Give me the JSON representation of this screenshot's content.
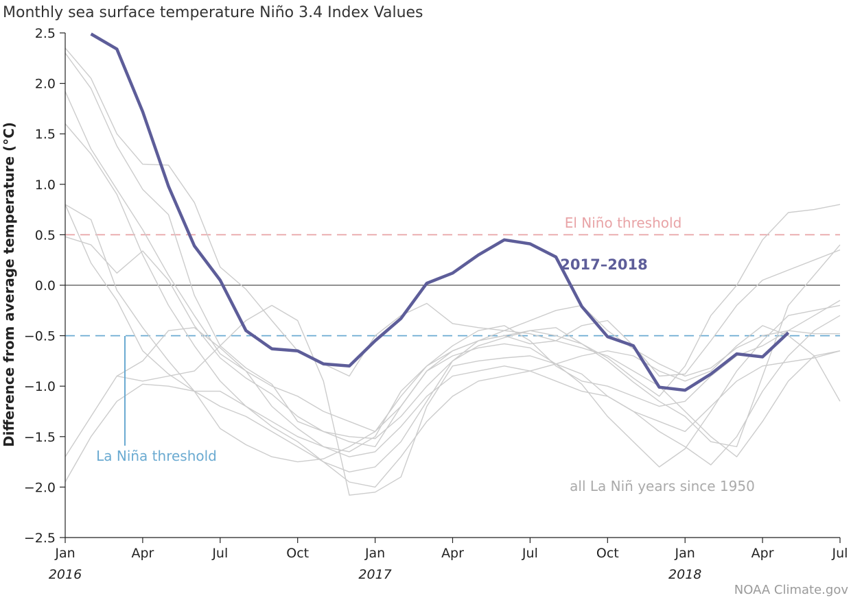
{
  "title": "Monthly sea surface temperature Niño 3.4 Index Values",
  "credit": "NOAA Climate.gov",
  "colors": {
    "highlight": "#5d5d99",
    "background_series": "#cccccc",
    "el_nino": "#e8a3a6",
    "la_nina": "#6aaad1",
    "zero_line": "#222222",
    "gray_text": "#aaaaaa"
  },
  "chart_data": {
    "type": "line",
    "title": "Monthly sea surface temperature Niño 3.4 Index Values",
    "xlabel": "",
    "ylabel": "Difference from average temperature (°C)",
    "ylim": [
      -2.5,
      2.5
    ],
    "yticks": [
      2.5,
      2.0,
      1.5,
      1.0,
      0.5,
      0.0,
      -0.5,
      -1.0,
      -1.5,
      -2.0,
      -2.5
    ],
    "ytick_labels": [
      "2.5",
      "2.0",
      "1.5",
      "1.0",
      "0.5",
      "0.0",
      "−0.5",
      "−1.0",
      "−1.5",
      "−2.0",
      "−2.5"
    ],
    "x_domain": [
      "2016-01",
      "2018-07"
    ],
    "xticks": [
      {
        "x": "2016-01",
        "label": "Jan",
        "year": "2016"
      },
      {
        "x": "2016-04",
        "label": "Apr"
      },
      {
        "x": "2016-07",
        "label": "Jul"
      },
      {
        "x": "2016-10",
        "label": "Oct"
      },
      {
        "x": "2017-01",
        "label": "Jan",
        "year": "2017"
      },
      {
        "x": "2017-04",
        "label": "Apr"
      },
      {
        "x": "2017-07",
        "label": "Jul"
      },
      {
        "x": "2017-10",
        "label": "Oct"
      },
      {
        "x": "2018-01",
        "label": "Jan",
        "year": "2018"
      },
      {
        "x": "2018-04",
        "label": "Apr"
      },
      {
        "x": "2018-07",
        "label": "Jul"
      }
    ],
    "thresholds": [
      {
        "label": "El Niño threshold",
        "y": 0.5,
        "color": "#e8a3a6"
      },
      {
        "label": "La Niña threshold",
        "y": -0.5,
        "color": "#6aaad1"
      }
    ],
    "highlight_series": {
      "name": "2017–2018",
      "x": [
        "2016-02",
        "2016-03",
        "2016-04",
        "2016-05",
        "2016-06",
        "2016-07",
        "2016-08",
        "2016-09",
        "2016-10",
        "2016-11",
        "2016-12",
        "2017-01",
        "2017-02",
        "2017-03",
        "2017-04",
        "2017-05",
        "2017-06",
        "2017-07",
        "2017-08",
        "2017-09",
        "2017-10",
        "2017-11",
        "2017-12",
        "2018-01",
        "2018-02",
        "2018-03",
        "2018-04",
        "2018-05",
        "2018-06"
      ],
      "values": [
        2.49,
        2.34,
        1.72,
        0.98,
        0.39,
        0.05,
        -0.45,
        -0.63,
        -0.65,
        -0.78,
        -0.8,
        -0.55,
        -0.33,
        0.02,
        0.12,
        0.3,
        0.45,
        0.41,
        0.28,
        -0.21,
        -0.51,
        -0.6,
        -1.01,
        -1.04,
        -0.88,
        -0.68,
        -0.71,
        -0.47,
        null
      ]
    },
    "background_series_label": "all La Niñ years since 1950",
    "background_series": [
      {
        "x": [
          "2016-01",
          "2016-02",
          "2016-03",
          "2016-04",
          "2016-05",
          "2016-06",
          "2016-07",
          "2016-08",
          "2016-09",
          "2016-10",
          "2016-11",
          "2016-12",
          "2017-01",
          "2017-02",
          "2017-03",
          "2017-04",
          "2017-05",
          "2017-06",
          "2017-07",
          "2017-08",
          "2017-09",
          "2017-10",
          "2017-11",
          "2017-12",
          "2018-01",
          "2018-02",
          "2018-03",
          "2018-04",
          "2018-05",
          "2018-06",
          "2018-07"
        ],
        "values": [
          2.35,
          2.05,
          1.5,
          1.2,
          1.19,
          0.82,
          0.18,
          -0.04,
          -0.35,
          -0.65,
          -0.78,
          -0.9,
          -0.5,
          -0.3,
          -0.18,
          -0.38,
          -0.42,
          -0.45,
          -0.35,
          -0.25,
          -0.2,
          -0.45,
          -0.63,
          -0.78,
          -0.9,
          -0.82,
          -0.62,
          -0.5,
          -0.45,
          -0.48,
          -0.48
        ]
      },
      {
        "x": [
          "2016-01",
          "2016-02",
          "2016-03",
          "2016-04",
          "2016-05",
          "2016-06",
          "2016-07",
          "2016-08",
          "2016-09",
          "2016-10",
          "2016-11",
          "2016-12",
          "2017-01",
          "2017-02",
          "2017-03",
          "2017-04",
          "2017-05",
          "2017-06",
          "2017-07",
          "2017-08",
          "2017-09",
          "2017-10",
          "2017-11",
          "2017-12",
          "2018-01",
          "2018-02",
          "2018-03",
          "2018-04",
          "2018-05",
          "2018-06",
          "2018-07"
        ],
        "values": [
          2.3,
          1.95,
          1.38,
          0.95,
          0.7,
          -0.1,
          -0.6,
          -0.82,
          -0.98,
          -1.35,
          -1.45,
          -1.55,
          -1.6,
          -1.2,
          -0.85,
          -0.7,
          -0.62,
          -0.58,
          -0.62,
          -0.78,
          -0.98,
          -1.3,
          -1.55,
          -1.8,
          -1.62,
          -1.25,
          -0.85,
          -0.55,
          -0.3,
          -0.25,
          -0.2
        ]
      },
      {
        "x": [
          "2016-01",
          "2016-02",
          "2016-03",
          "2016-04",
          "2016-05",
          "2016-06",
          "2016-07",
          "2016-08",
          "2016-09",
          "2016-10",
          "2016-11",
          "2016-12",
          "2017-01",
          "2017-02",
          "2017-03",
          "2017-04",
          "2017-05",
          "2017-06",
          "2017-07",
          "2017-08",
          "2017-09",
          "2017-10",
          "2017-11",
          "2017-12",
          "2018-01",
          "2018-02",
          "2018-03",
          "2018-04",
          "2018-05",
          "2018-06",
          "2018-07"
        ],
        "values": [
          1.92,
          1.35,
          0.95,
          0.55,
          0.1,
          -0.3,
          -0.68,
          -0.85,
          -1.0,
          -1.1,
          -1.25,
          -1.35,
          -1.45,
          -1.1,
          -0.8,
          -0.6,
          -0.45,
          -0.4,
          -0.55,
          -0.8,
          -0.95,
          -1.0,
          -1.1,
          -1.2,
          -1.15,
          -0.9,
          -0.7,
          -0.6,
          -0.45,
          -0.3,
          -0.15
        ]
      },
      {
        "x": [
          "2016-01",
          "2016-02",
          "2016-03",
          "2016-04",
          "2016-05",
          "2016-06",
          "2016-07",
          "2016-08",
          "2016-09",
          "2016-10",
          "2016-11",
          "2016-12",
          "2017-01",
          "2017-02",
          "2017-03",
          "2017-04",
          "2017-05",
          "2017-06",
          "2017-07",
          "2017-08",
          "2017-09",
          "2017-10",
          "2017-11",
          "2017-12",
          "2018-01",
          "2018-02",
          "2018-03",
          "2018-04",
          "2018-05",
          "2018-06",
          "2018-07"
        ],
        "values": [
          1.6,
          1.3,
          0.9,
          0.3,
          -0.2,
          -0.6,
          -0.95,
          -1.2,
          -1.35,
          -1.5,
          -1.6,
          -1.7,
          -1.65,
          -1.4,
          -1.1,
          -0.9,
          -0.85,
          -0.8,
          -0.85,
          -0.95,
          -1.05,
          -1.1,
          -1.25,
          -1.45,
          -1.6,
          -1.78,
          -1.5,
          -1.05,
          -0.7,
          -0.45,
          -0.3
        ]
      },
      {
        "x": [
          "2016-01",
          "2016-02",
          "2016-03",
          "2016-04",
          "2016-05",
          "2016-06",
          "2016-07",
          "2016-08",
          "2016-09",
          "2016-10",
          "2016-11",
          "2016-12",
          "2017-01",
          "2017-02",
          "2017-03",
          "2017-04",
          "2017-05",
          "2017-06",
          "2017-07",
          "2017-08",
          "2017-09",
          "2017-10",
          "2017-11",
          "2017-12",
          "2018-01",
          "2018-02",
          "2018-03",
          "2018-04",
          "2018-05",
          "2018-06",
          "2018-07"
        ],
        "values": [
          0.8,
          0.65,
          -0.05,
          -0.42,
          -0.75,
          -1.05,
          -1.2,
          -1.3,
          -1.45,
          -1.6,
          -1.75,
          -1.85,
          -1.8,
          -1.55,
          -1.15,
          -0.75,
          -0.55,
          -0.45,
          -0.48,
          -0.55,
          -0.62,
          -0.7,
          -0.85,
          -1.0,
          -1.25,
          -1.5,
          -1.7,
          -1.35,
          -0.95,
          -0.7,
          -0.65
        ]
      },
      {
        "x": [
          "2016-01",
          "2016-02",
          "2016-03",
          "2016-04",
          "2016-05",
          "2016-06",
          "2016-07",
          "2016-08",
          "2016-09",
          "2016-10",
          "2016-11",
          "2016-12",
          "2017-01",
          "2017-02",
          "2017-03",
          "2017-04",
          "2017-05",
          "2017-06",
          "2017-07",
          "2017-08",
          "2017-09",
          "2017-10",
          "2017-11",
          "2017-12",
          "2018-01",
          "2018-02",
          "2018-03",
          "2018-04",
          "2018-05",
          "2018-06",
          "2018-07"
        ],
        "values": [
          0.8,
          0.22,
          -0.15,
          -0.65,
          -0.88,
          -1.05,
          -1.42,
          -1.58,
          -1.7,
          -1.75,
          -1.72,
          -1.6,
          -1.45,
          -1.2,
          -0.85,
          -0.65,
          -0.55,
          -0.5,
          -0.45,
          -0.5,
          -0.58,
          -0.75,
          -0.96,
          -1.15,
          -1.3,
          -1.55,
          -1.6,
          -0.9,
          -0.2,
          0.1,
          0.4
        ]
      },
      {
        "x": [
          "2016-01",
          "2016-02",
          "2016-03",
          "2016-04",
          "2016-05",
          "2016-06",
          "2016-07",
          "2016-08",
          "2016-09",
          "2016-10",
          "2016-11",
          "2016-12",
          "2017-01",
          "2017-02",
          "2017-03",
          "2017-04",
          "2017-05",
          "2017-06",
          "2017-07",
          "2017-08",
          "2017-09",
          "2017-10",
          "2017-11",
          "2017-12",
          "2018-01",
          "2018-02",
          "2018-03",
          "2018-04",
          "2018-05",
          "2018-06",
          "2018-07"
        ],
        "values": [
          0.48,
          0.4,
          0.12,
          0.34,
          0.05,
          -0.4,
          -0.72,
          -0.92,
          -1.08,
          -1.3,
          -1.45,
          -1.5,
          -1.52,
          -1.3,
          -1.0,
          -0.75,
          -0.6,
          -0.52,
          -0.45,
          -0.42,
          -0.58,
          -0.72,
          -0.92,
          -1.1,
          -0.8,
          -0.3,
          0.0,
          0.45,
          0.72,
          0.75,
          0.8
        ]
      },
      {
        "x": [
          "2016-01",
          "2016-02",
          "2016-03",
          "2016-04",
          "2016-05",
          "2016-06",
          "2016-07",
          "2016-08",
          "2016-09",
          "2016-10",
          "2016-11",
          "2016-12",
          "2017-01",
          "2017-02",
          "2017-03",
          "2017-04",
          "2017-05",
          "2017-06",
          "2017-07",
          "2017-08",
          "2017-09",
          "2017-10",
          "2017-11",
          "2017-12",
          "2018-01",
          "2018-02",
          "2018-03",
          "2018-04",
          "2018-05",
          "2018-06",
          "2018-07"
        ],
        "values": [
          -1.7,
          -1.3,
          -0.9,
          -0.75,
          -0.45,
          -0.42,
          -0.62,
          -0.85,
          -1.2,
          -1.42,
          -1.6,
          -1.65,
          -1.5,
          -1.05,
          -0.8,
          -0.65,
          -0.55,
          -0.5,
          -0.58,
          -0.55,
          -0.4,
          -0.35,
          -0.6,
          -0.9,
          -0.88,
          -0.55,
          -0.2,
          0.05,
          0.15,
          0.25,
          0.35
        ]
      },
      {
        "x": [
          "2016-01",
          "2016-02",
          "2016-03",
          "2016-04",
          "2016-05",
          "2016-06",
          "2016-07",
          "2016-08",
          "2016-09",
          "2016-10",
          "2016-11",
          "2016-12",
          "2017-01",
          "2017-02",
          "2017-03",
          "2017-04",
          "2017-05",
          "2017-06",
          "2017-07",
          "2017-08",
          "2017-09",
          "2017-10",
          "2017-11",
          "2017-12",
          "2018-01",
          "2018-02",
          "2018-03",
          "2018-04",
          "2018-05",
          "2018-06",
          "2018-07"
        ],
        "values": [
          -1.95,
          -1.5,
          -1.15,
          -0.98,
          -1.0,
          -1.05,
          -1.05,
          -1.2,
          -1.4,
          -1.55,
          -1.75,
          -1.95,
          -2.0,
          -1.7,
          -1.35,
          -1.1,
          -0.95,
          -0.9,
          -0.85,
          -0.78,
          -0.7,
          -0.65,
          -0.7,
          -0.85,
          -0.95,
          -0.85,
          -0.6,
          -0.4,
          -0.5,
          -0.7,
          -1.15
        ]
      },
      {
        "x": [
          "2016-01",
          "2016-02",
          "2016-03",
          "2016-04",
          "2016-05",
          "2016-06",
          "2016-07",
          "2016-08",
          "2016-09",
          "2016-10",
          "2016-11",
          "2016-12",
          "2017-01",
          "2017-02",
          "2017-03",
          "2017-04",
          "2017-05",
          "2017-06",
          "2017-07",
          "2017-08",
          "2017-09",
          "2017-10",
          "2017-11",
          "2017-12",
          "2018-01",
          "2018-02",
          "2018-03",
          "2018-04",
          "2018-05",
          "2018-06",
          "2018-07"
        ],
        "values": [
          null,
          null,
          -0.9,
          -0.95,
          -0.9,
          -0.85,
          -0.6,
          -0.35,
          -0.2,
          -0.35,
          -0.95,
          -2.08,
          -2.05,
          -1.9,
          -1.2,
          -0.8,
          -0.75,
          -0.72,
          -0.7,
          -0.78,
          -0.88,
          -1.1,
          -1.25,
          -1.35,
          -1.45,
          -1.2,
          -0.95,
          -0.8,
          -0.76,
          -0.72,
          -0.65
        ]
      }
    ]
  },
  "annotations": {
    "el_nino_label": "El Niño threshold",
    "la_nina_label": "La Niña threshold",
    "highlight_label": "2017–2018",
    "background_label": "all La Niñ years since 1950"
  }
}
